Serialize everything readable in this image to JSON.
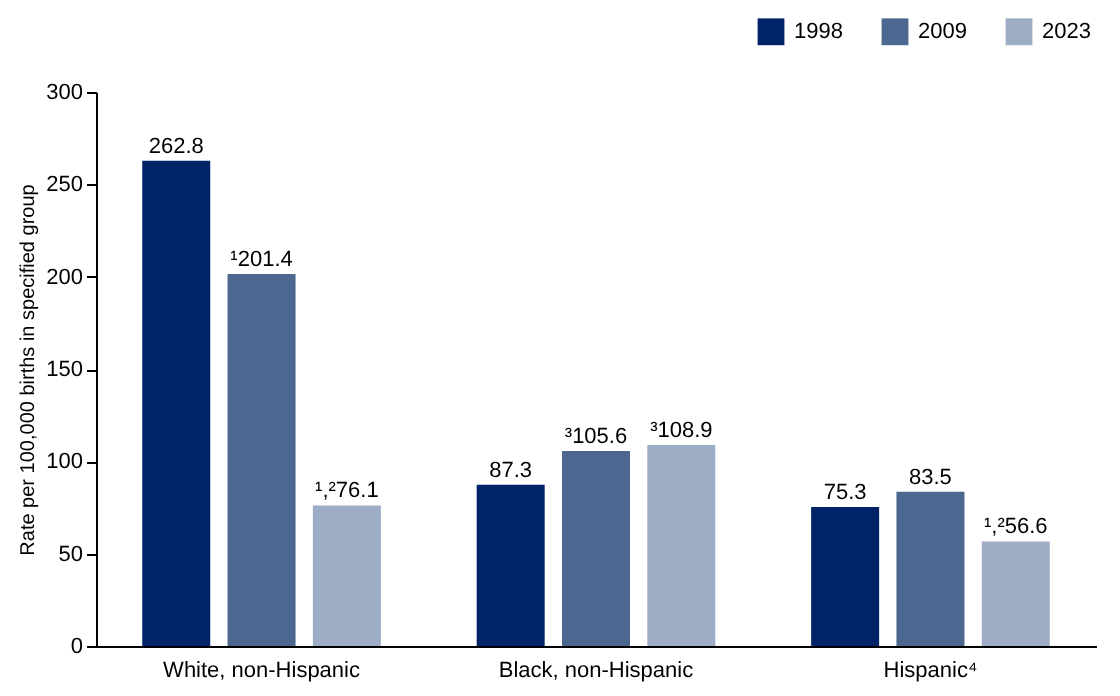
{
  "chart_data": {
    "type": "bar",
    "ylabel": "Rate per 100,000 births in specified group",
    "categories": [
      "White, non-Hispanic",
      "Black, non-Hispanic",
      "Hispanic⁴"
    ],
    "series": [
      {
        "name": "1998",
        "color": "#002467",
        "values": [
          262.8,
          87.3,
          75.3
        ],
        "value_labels": [
          "262.8",
          "87.3",
          "75.3"
        ]
      },
      {
        "name": "2009",
        "color": "#4d6890",
        "values": [
          201.4,
          105.6,
          83.5
        ],
        "value_labels": [
          "¹201.4",
          "³105.6",
          "83.5"
        ]
      },
      {
        "name": "2023",
        "color": "#9dadc6",
        "values": [
          76.1,
          108.9,
          56.6
        ],
        "value_labels": [
          "¹,²76.1",
          "³108.9",
          "¹,²56.6"
        ]
      }
    ],
    "ylim": [
      0,
      300
    ],
    "yticks": [
      0,
      50,
      100,
      150,
      200,
      250,
      300
    ],
    "grid": false,
    "legend": "top right"
  }
}
